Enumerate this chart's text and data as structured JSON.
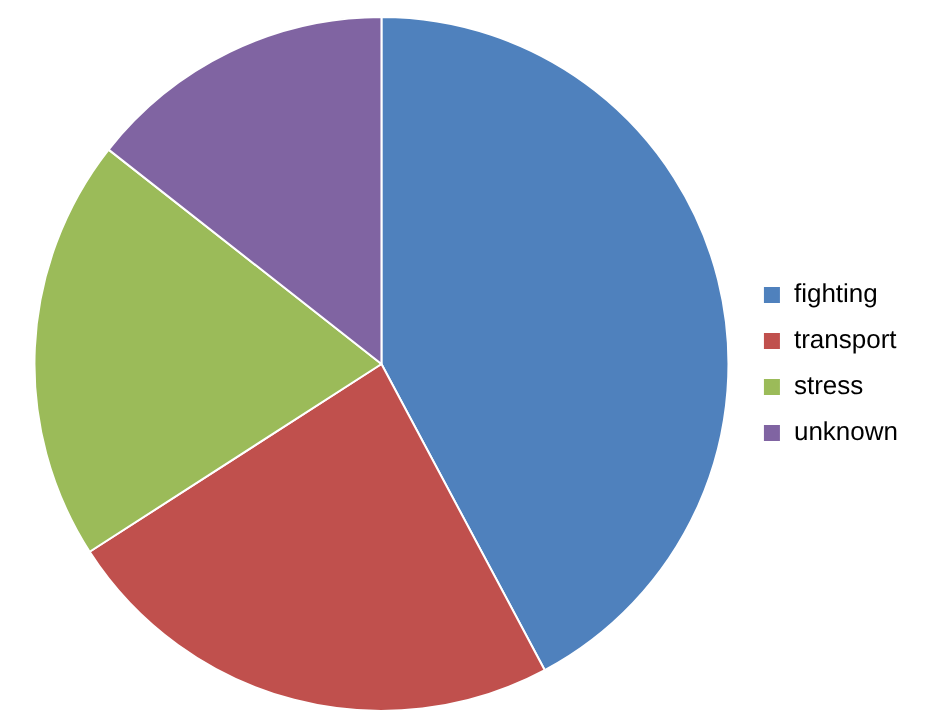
{
  "chart_data": {
    "type": "pie",
    "categories": [
      "fighting",
      "transport",
      "stress",
      "unknown"
    ],
    "values": [
      42.2,
      23.7,
      19.7,
      14.4
    ],
    "colors": [
      "#4f81bd",
      "#c0504d",
      "#9bbb59",
      "#8064a2"
    ],
    "legend": "right"
  }
}
